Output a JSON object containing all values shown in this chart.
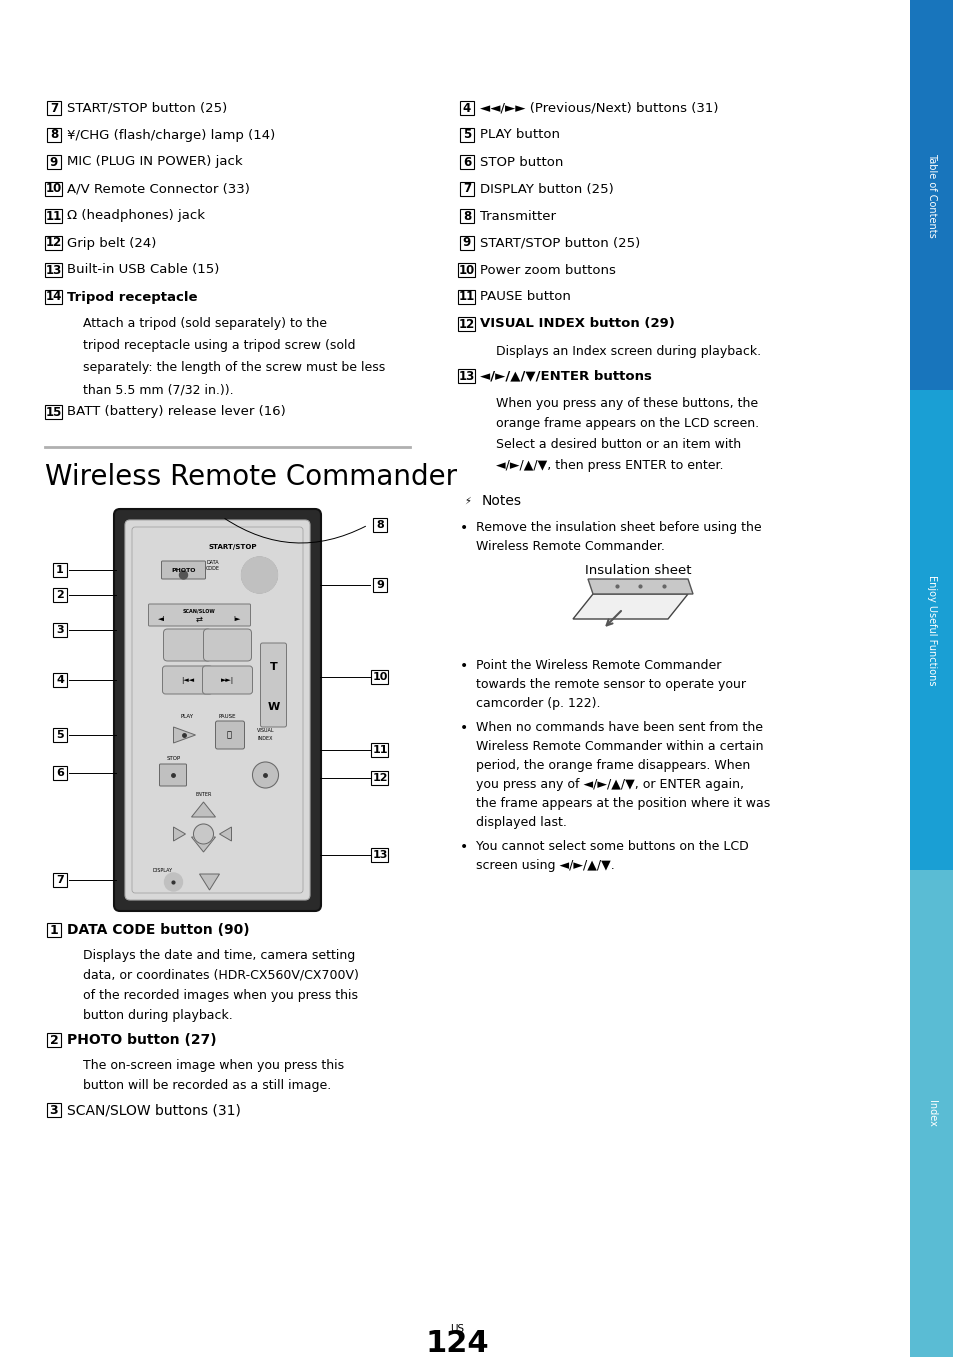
{
  "bg_color": "#ffffff",
  "sidebar_colors": [
    "#1875bc",
    "#1a9fd4",
    "#5abcd4"
  ],
  "sidebar_labels": [
    "Table of Contents",
    "Enjoy Useful Functions",
    "Index"
  ],
  "page_number": "124",
  "left_items": [
    {
      "num": "7",
      "text": "START/STOP button (25)",
      "bold": false,
      "sub": null
    },
    {
      "num": "8",
      "text": "¥/CHG (flash/charge) lamp (14)",
      "bold": false,
      "sub": null
    },
    {
      "num": "9",
      "text": "MIC (PLUG IN POWER) jack",
      "bold": false,
      "sub": null
    },
    {
      "num": "10",
      "text": "A/V Remote Connector (33)",
      "bold": false,
      "sub": null
    },
    {
      "num": "11",
      "text": "Ω (headphones) jack",
      "bold": false,
      "sub": null
    },
    {
      "num": "12",
      "text": "Grip belt (24)",
      "bold": false,
      "sub": null
    },
    {
      "num": "13",
      "text": "Built-in USB Cable (15)",
      "bold": false,
      "sub": null
    },
    {
      "num": "14",
      "text": "Tripod receptacle",
      "bold": true,
      "sub": "Attach a tripod (sold separately) to the\ntripod receptacle using a tripod screw (sold\nseparately: the length of the screw must be less\nthan 5.5 mm (7/32 in.))."
    },
    {
      "num": "15",
      "text": "BATT (battery) release lever (16)",
      "bold": false,
      "sub": null
    }
  ],
  "right_items": [
    {
      "num": "4",
      "text": "◄◄/►► (Previous/Next) buttons (31)",
      "bold": false,
      "sub": null
    },
    {
      "num": "5",
      "text": "PLAY button",
      "bold": false,
      "sub": null
    },
    {
      "num": "6",
      "text": "STOP button",
      "bold": false,
      "sub": null
    },
    {
      "num": "7",
      "text": "DISPLAY button (25)",
      "bold": false,
      "sub": null
    },
    {
      "num": "8",
      "text": "Transmitter",
      "bold": false,
      "sub": null
    },
    {
      "num": "9",
      "text": "START/STOP button (25)",
      "bold": false,
      "sub": null
    },
    {
      "num": "10",
      "text": "Power zoom buttons",
      "bold": false,
      "sub": null
    },
    {
      "num": "11",
      "text": "PAUSE button",
      "bold": false,
      "sub": null
    },
    {
      "num": "12",
      "text": "VISUAL INDEX button (29)",
      "bold": true,
      "sub": "Displays an Index screen during playback."
    },
    {
      "num": "13",
      "text": "◄/►/▲/▼/ENTER buttons",
      "bold": true,
      "sub": "When you press any of these buttons, the\norange frame appears on the LCD screen.\nSelect a desired button or an item with\n◄/►/▲/▼, then press ENTER to enter."
    }
  ],
  "section_title": "Wireless Remote Commander",
  "remote_left_labels": [
    {
      "num": "1",
      "row": 0
    },
    {
      "num": "2",
      "row": 1
    },
    {
      "num": "3",
      "row": 2
    },
    {
      "num": "4",
      "row": 3
    },
    {
      "num": "5",
      "row": 4
    },
    {
      "num": "6",
      "row": 5
    },
    {
      "num": "7",
      "row": 6
    }
  ],
  "remote_right_labels": [
    {
      "num": "8",
      "row": 0
    },
    {
      "num": "9",
      "row": 1
    },
    {
      "num": "10",
      "row": 2
    },
    {
      "num": "11",
      "row": 3
    },
    {
      "num": "12",
      "row": 4
    },
    {
      "num": "13",
      "row": 5
    }
  ],
  "bottom_left_items": [
    {
      "num": "1",
      "text": "DATA CODE button (90)",
      "bold": true,
      "sub": "Displays the date and time, camera setting\ndata, or coordinates (HDR-CX560V/CX700V)\nof the recorded images when you press this\nbutton during playback."
    },
    {
      "num": "2",
      "text": "PHOTO button (27)",
      "bold": true,
      "sub": "The on-screen image when you press this\nbutton will be recorded as a still image."
    },
    {
      "num": "3",
      "text": "SCAN/SLOW buttons (31)",
      "bold": false,
      "sub": null
    }
  ],
  "notes_items": [
    "Remove the insulation sheet before using the\nWireless Remote Commander.",
    "Point the Wireless Remote Commander\ntowards the remote sensor to operate your\ncamcorder (p. 122).",
    "When no commands have been sent from the\nWireless Remote Commander within a certain\nperiod, the orange frame disappears. When\nyou press any of ◄/►/▲/▼, or ENTER again,\nthe frame appears at the position where it was\ndisplayed last.",
    "You cannot select some buttons on the LCD\nscreen using ◄/►/▲/▼."
  ]
}
